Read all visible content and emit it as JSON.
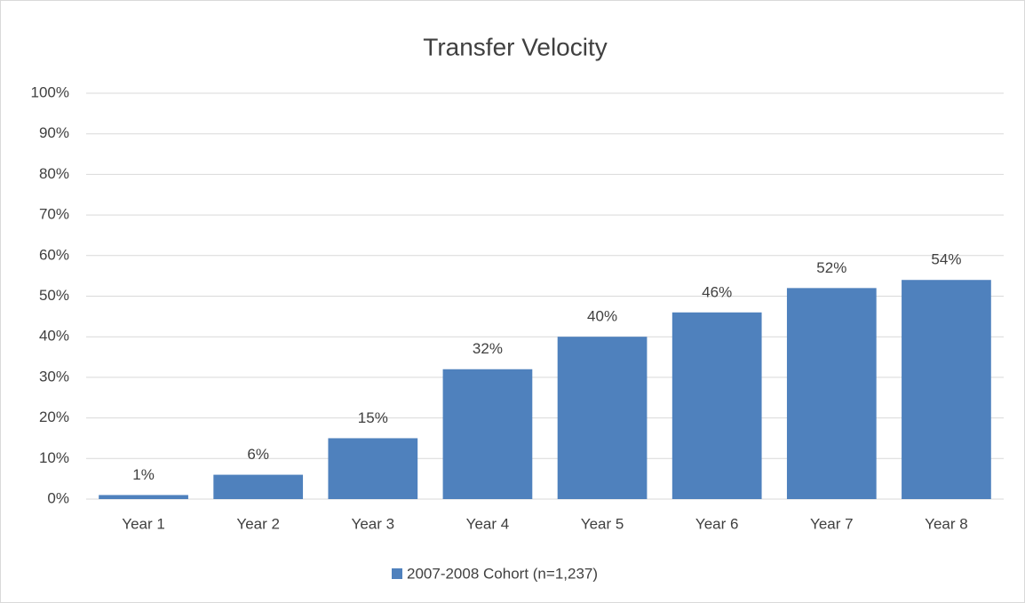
{
  "chart_data": {
    "type": "bar",
    "title": "Transfer Velocity",
    "categories": [
      "Year 1",
      "Year 2",
      "Year 3",
      "Year 4",
      "Year 5",
      "Year 6",
      "Year 7",
      "Year 8"
    ],
    "series": [
      {
        "name": "2007-2008 Cohort (n=1,237)",
        "color": "#4f81bd",
        "values": [
          1,
          6,
          15,
          32,
          40,
          46,
          52,
          54
        ],
        "value_labels": [
          "1%",
          "6%",
          "15%",
          "32%",
          "40%",
          "46%",
          "52%",
          "54%"
        ]
      }
    ],
    "ylim": [
      0,
      100
    ],
    "yticks": [
      {
        "value": 0,
        "label": "0%"
      },
      {
        "value": 10,
        "label": "10%"
      },
      {
        "value": 20,
        "label": "20%"
      },
      {
        "value": 30,
        "label": "30%"
      },
      {
        "value": 40,
        "label": "40%"
      },
      {
        "value": 50,
        "label": "50%"
      },
      {
        "value": 60,
        "label": "60%"
      },
      {
        "value": 70,
        "label": "70%"
      },
      {
        "value": 80,
        "label": "80%"
      },
      {
        "value": 90,
        "label": "90%"
      },
      {
        "value": 100,
        "label": "100%"
      }
    ],
    "grid": true,
    "legend": "bottom"
  }
}
